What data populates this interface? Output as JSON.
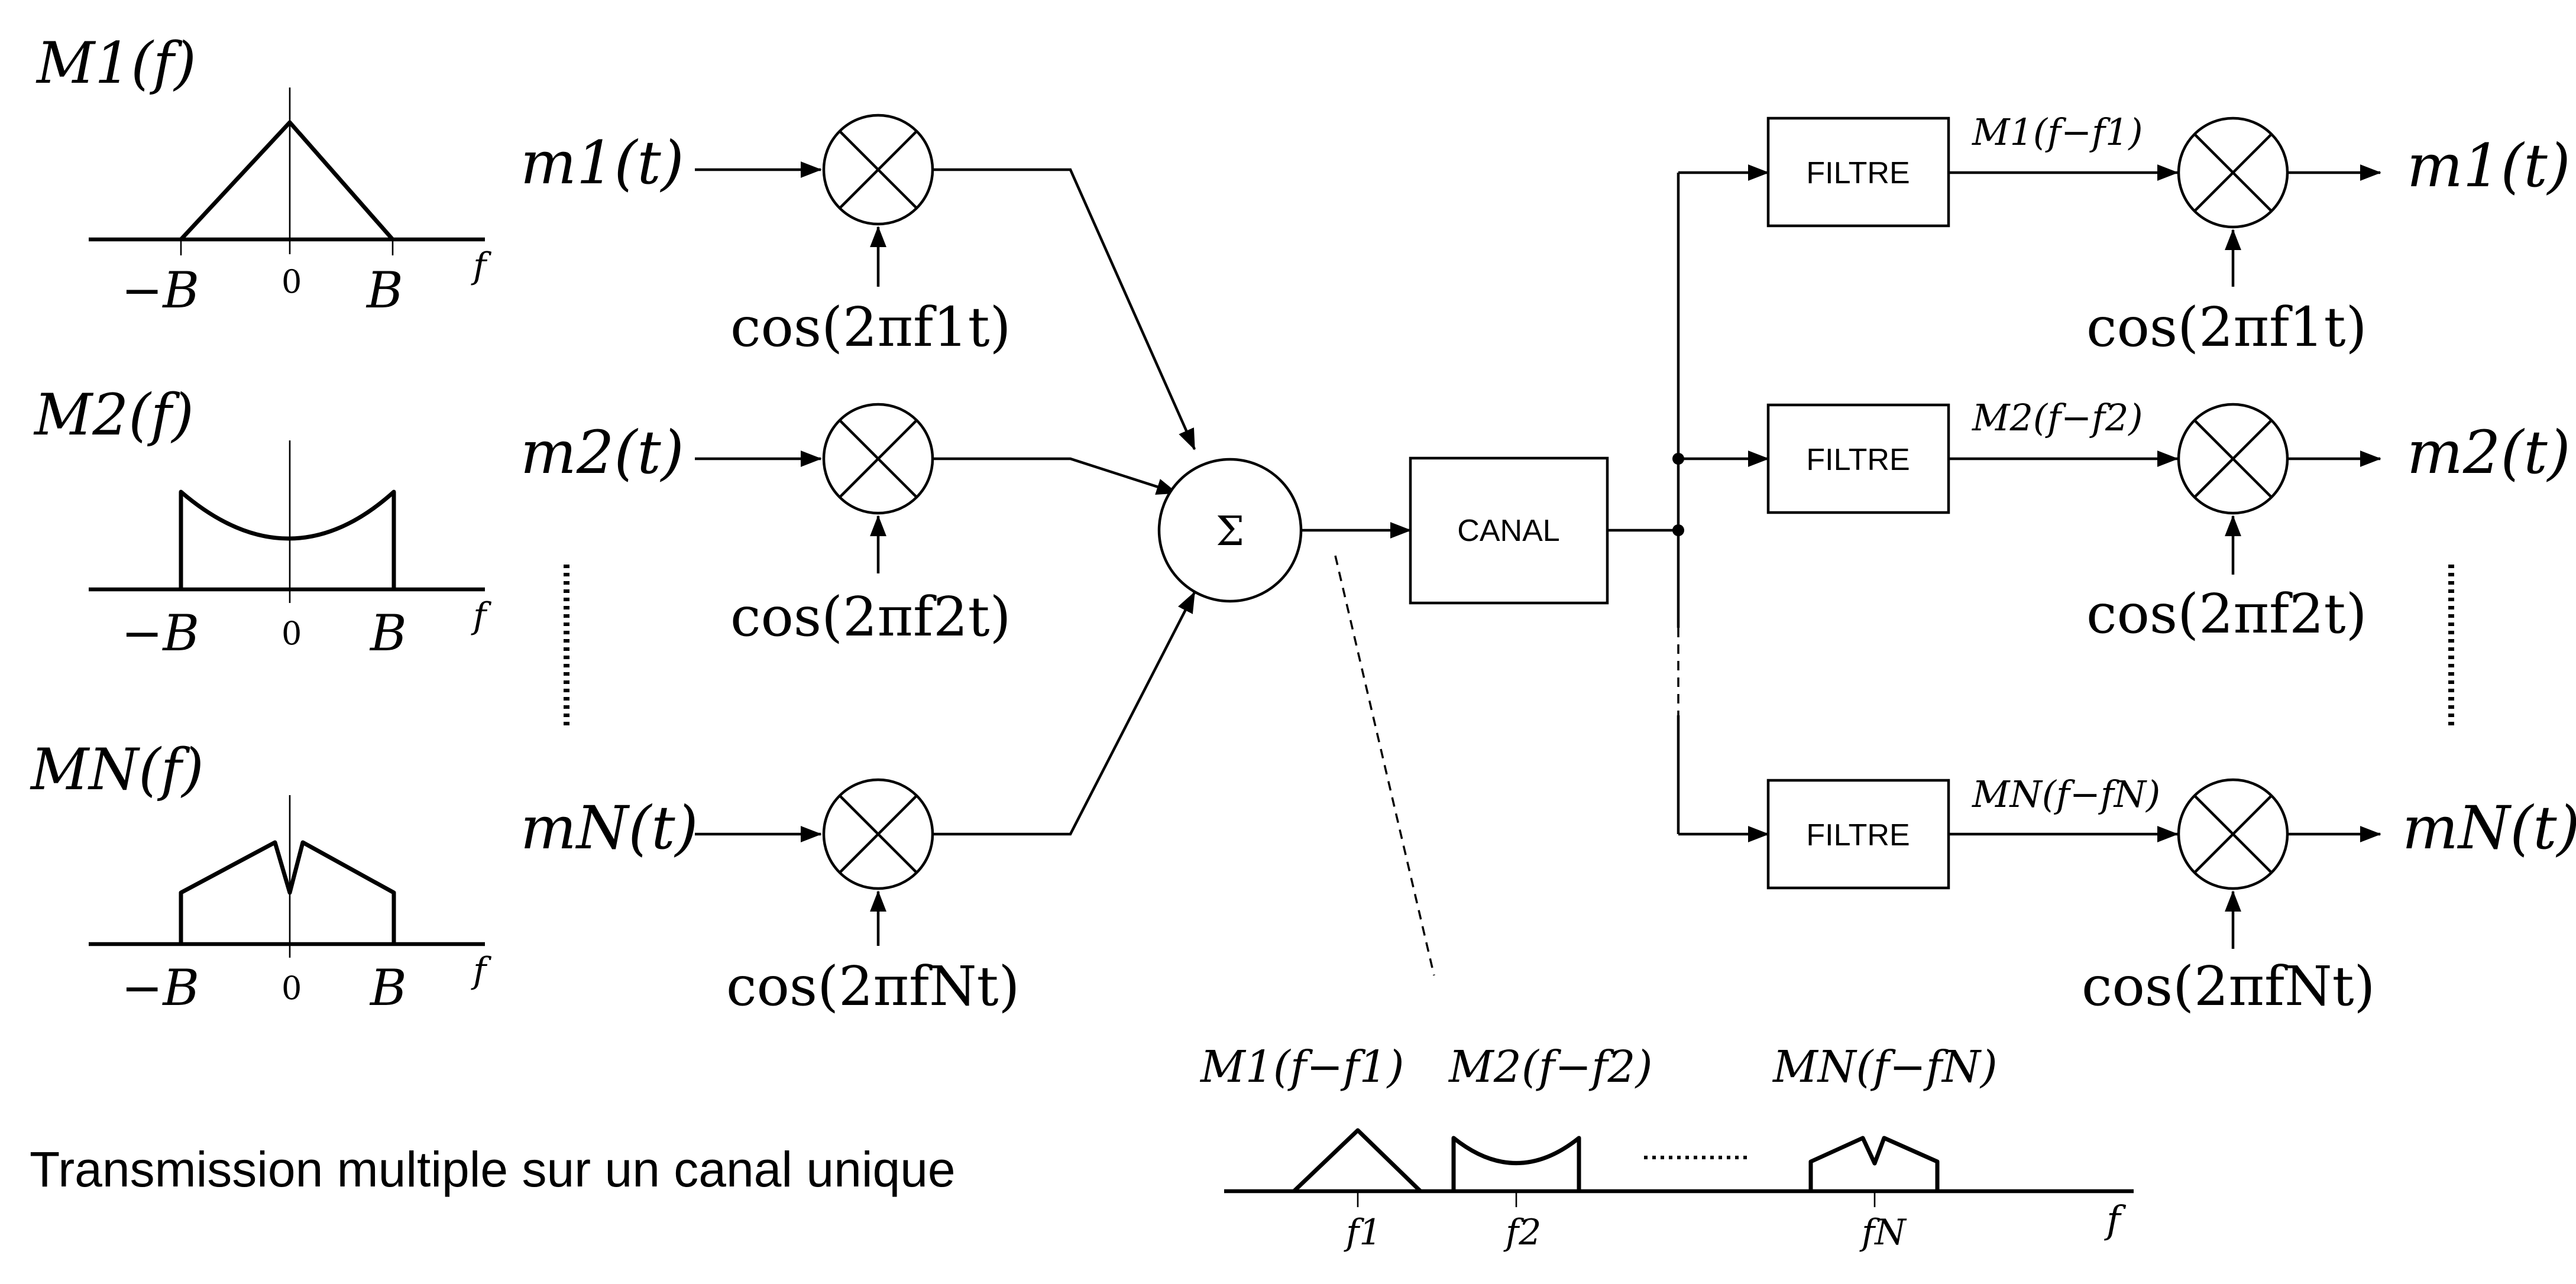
{
  "spectra": [
    {
      "label": "M1(f)",
      "minus_b": "−B",
      "zero": "0",
      "plus_b": "B",
      "f": "f"
    },
    {
      "label": "M2(f)",
      "minus_b": "−B",
      "zero": "0",
      "plus_b": "B",
      "f": "f"
    },
    {
      "label": "MN(f)",
      "minus_b": "−B",
      "zero": "0",
      "plus_b": "B",
      "f": "f"
    }
  ],
  "inputs": [
    {
      "signal": "m1(t)",
      "carrier": "cos(2πf1t)"
    },
    {
      "signal": "m2(t)",
      "carrier": "cos(2πf2t)"
    },
    {
      "signal": "mN(t)",
      "carrier": "cos(2πfNt)"
    }
  ],
  "sum_symbol": "Σ",
  "channel_label": "CANAL",
  "outputs": [
    {
      "filter": "FILTRE",
      "filtered": "M1(f−f1)",
      "carrier": "cos(2πf1t)",
      "signal": "m1(t)"
    },
    {
      "filter": "FILTRE",
      "filtered": "M2(f−f2)",
      "carrier": "cos(2πf2t)",
      "signal": "m2(t)"
    },
    {
      "filter": "FILTRE",
      "filtered": "MN(f−fN)",
      "carrier": "cos(2πfNt)",
      "signal": "mN(t)"
    }
  ],
  "multiplex": {
    "labels": [
      "M1(f−f1)",
      "M2(f−f2)",
      "MN(f−fN)"
    ],
    "ticks": [
      "f1",
      "f2",
      "fN"
    ],
    "f": "f"
  },
  "caption": "Transmission multiple sur un canal unique"
}
